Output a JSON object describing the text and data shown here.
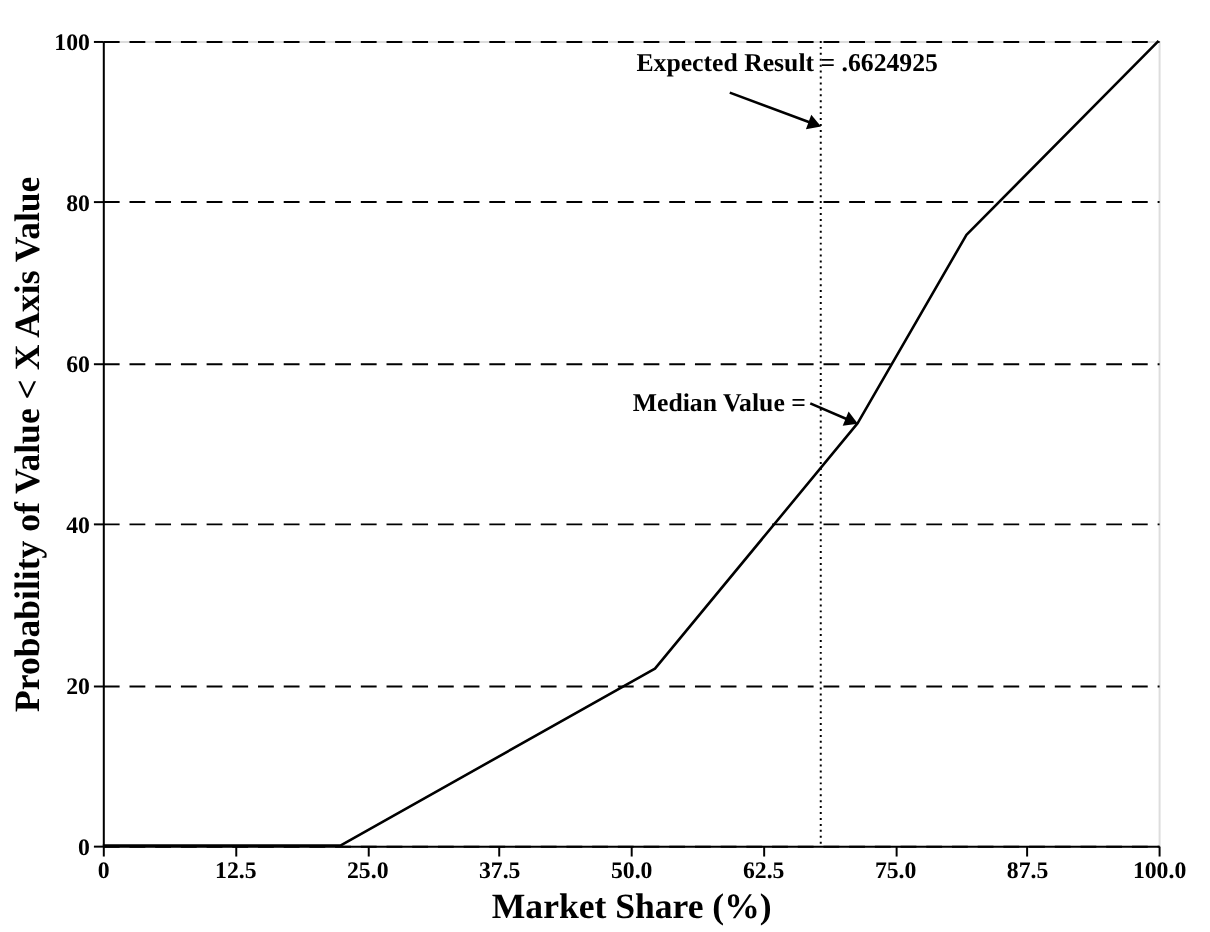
{
  "chart_data": {
    "type": "line",
    "xlabel": "Market Share (%)",
    "ylabel": "Probability of Value < X Axis Value",
    "x": [
      0,
      22.5,
      52.3,
      71.5,
      81.8,
      100
    ],
    "series": [
      {
        "color": "#000000",
        "values": [
          0,
          0,
          22,
          52.5,
          75.9,
          100
        ]
      }
    ],
    "xlim": [
      0,
      100
    ],
    "ylim": [
      0,
      100
    ],
    "xticks": [
      {
        "value": 0,
        "label": "0"
      },
      12.5,
      {
        "value": 25,
        "label": "25.0"
      },
      37.5,
      {
        "value": 50,
        "label": "50.0"
      },
      62.5,
      {
        "value": 75,
        "label": "75.0"
      },
      87.5,
      {
        "value": 100,
        "label": "100.0"
      }
    ],
    "yticks": [
      0,
      20,
      40,
      60,
      80,
      100
    ],
    "grid": "y",
    "marker": "none",
    "line_style": "solid",
    "ref_lines": [
      {
        "axis": "x",
        "value": 68,
        "line_style": "dotted",
        "color": "#000000"
      }
    ],
    "annotations": [
      {
        "text": "Expected Result = .6624925",
        "x": 68,
        "y": 89.4
      },
      {
        "text": "Median Value =",
        "x": 71.5,
        "y": 52.5
      }
    ]
  }
}
